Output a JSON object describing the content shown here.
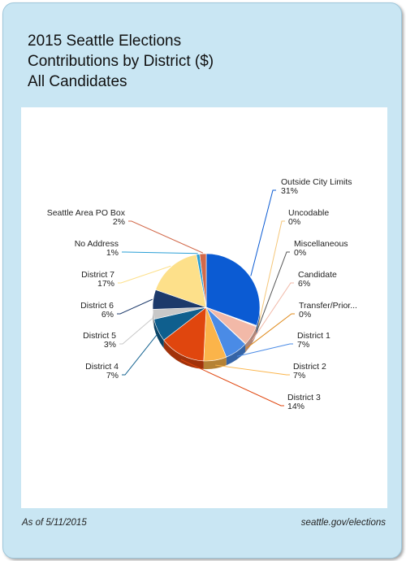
{
  "title": {
    "line1": "2015 Seattle Elections",
    "line2": "Contributions by District ($)",
    "line3": "All Candidates"
  },
  "footer": {
    "date": "As of 5/11/2015",
    "source": "seattle.gov/elections"
  },
  "chart_data": {
    "type": "pie",
    "title": "2015 Seattle Elections Contributions by District ($) All Candidates",
    "legend": "none",
    "slices": [
      {
        "label": "Outside City Limits",
        "value": 31,
        "pct_label": "31%",
        "color": "#0b5bd3"
      },
      {
        "label": "Uncodable",
        "value": 0,
        "pct_label": "0%",
        "color": "#f5c77a"
      },
      {
        "label": "Miscellaneous",
        "value": 0,
        "pct_label": "0%",
        "color": "#555555"
      },
      {
        "label": "Candidate",
        "value": 6,
        "pct_label": "6%",
        "color": "#f2b9a8"
      },
      {
        "label": "Transfer/Prior...",
        "value": 0,
        "pct_label": "0%",
        "color": "#e08a1a"
      },
      {
        "label": "District 1",
        "value": 7,
        "pct_label": "7%",
        "color": "#4a8be6"
      },
      {
        "label": "District 2",
        "value": 7,
        "pct_label": "7%",
        "color": "#fbb44a"
      },
      {
        "label": "District 3",
        "value": 14,
        "pct_label": "14%",
        "color": "#e0460e"
      },
      {
        "label": "District 4",
        "value": 7,
        "pct_label": "7%",
        "color": "#0f5f8e"
      },
      {
        "label": "District 5",
        "value": 3,
        "pct_label": "3%",
        "color": "#c8c8c8"
      },
      {
        "label": "District 6",
        "value": 6,
        "pct_label": "6%",
        "color": "#1d3a6b"
      },
      {
        "label": "District 7",
        "value": 17,
        "pct_label": "17%",
        "color": "#fde08a"
      },
      {
        "label": "No Address",
        "value": 1,
        "pct_label": "1%",
        "color": "#2a9fd6"
      },
      {
        "label": "Seattle Area PO Box",
        "value": 2,
        "pct_label": "2%",
        "color": "#d2694a"
      }
    ]
  }
}
